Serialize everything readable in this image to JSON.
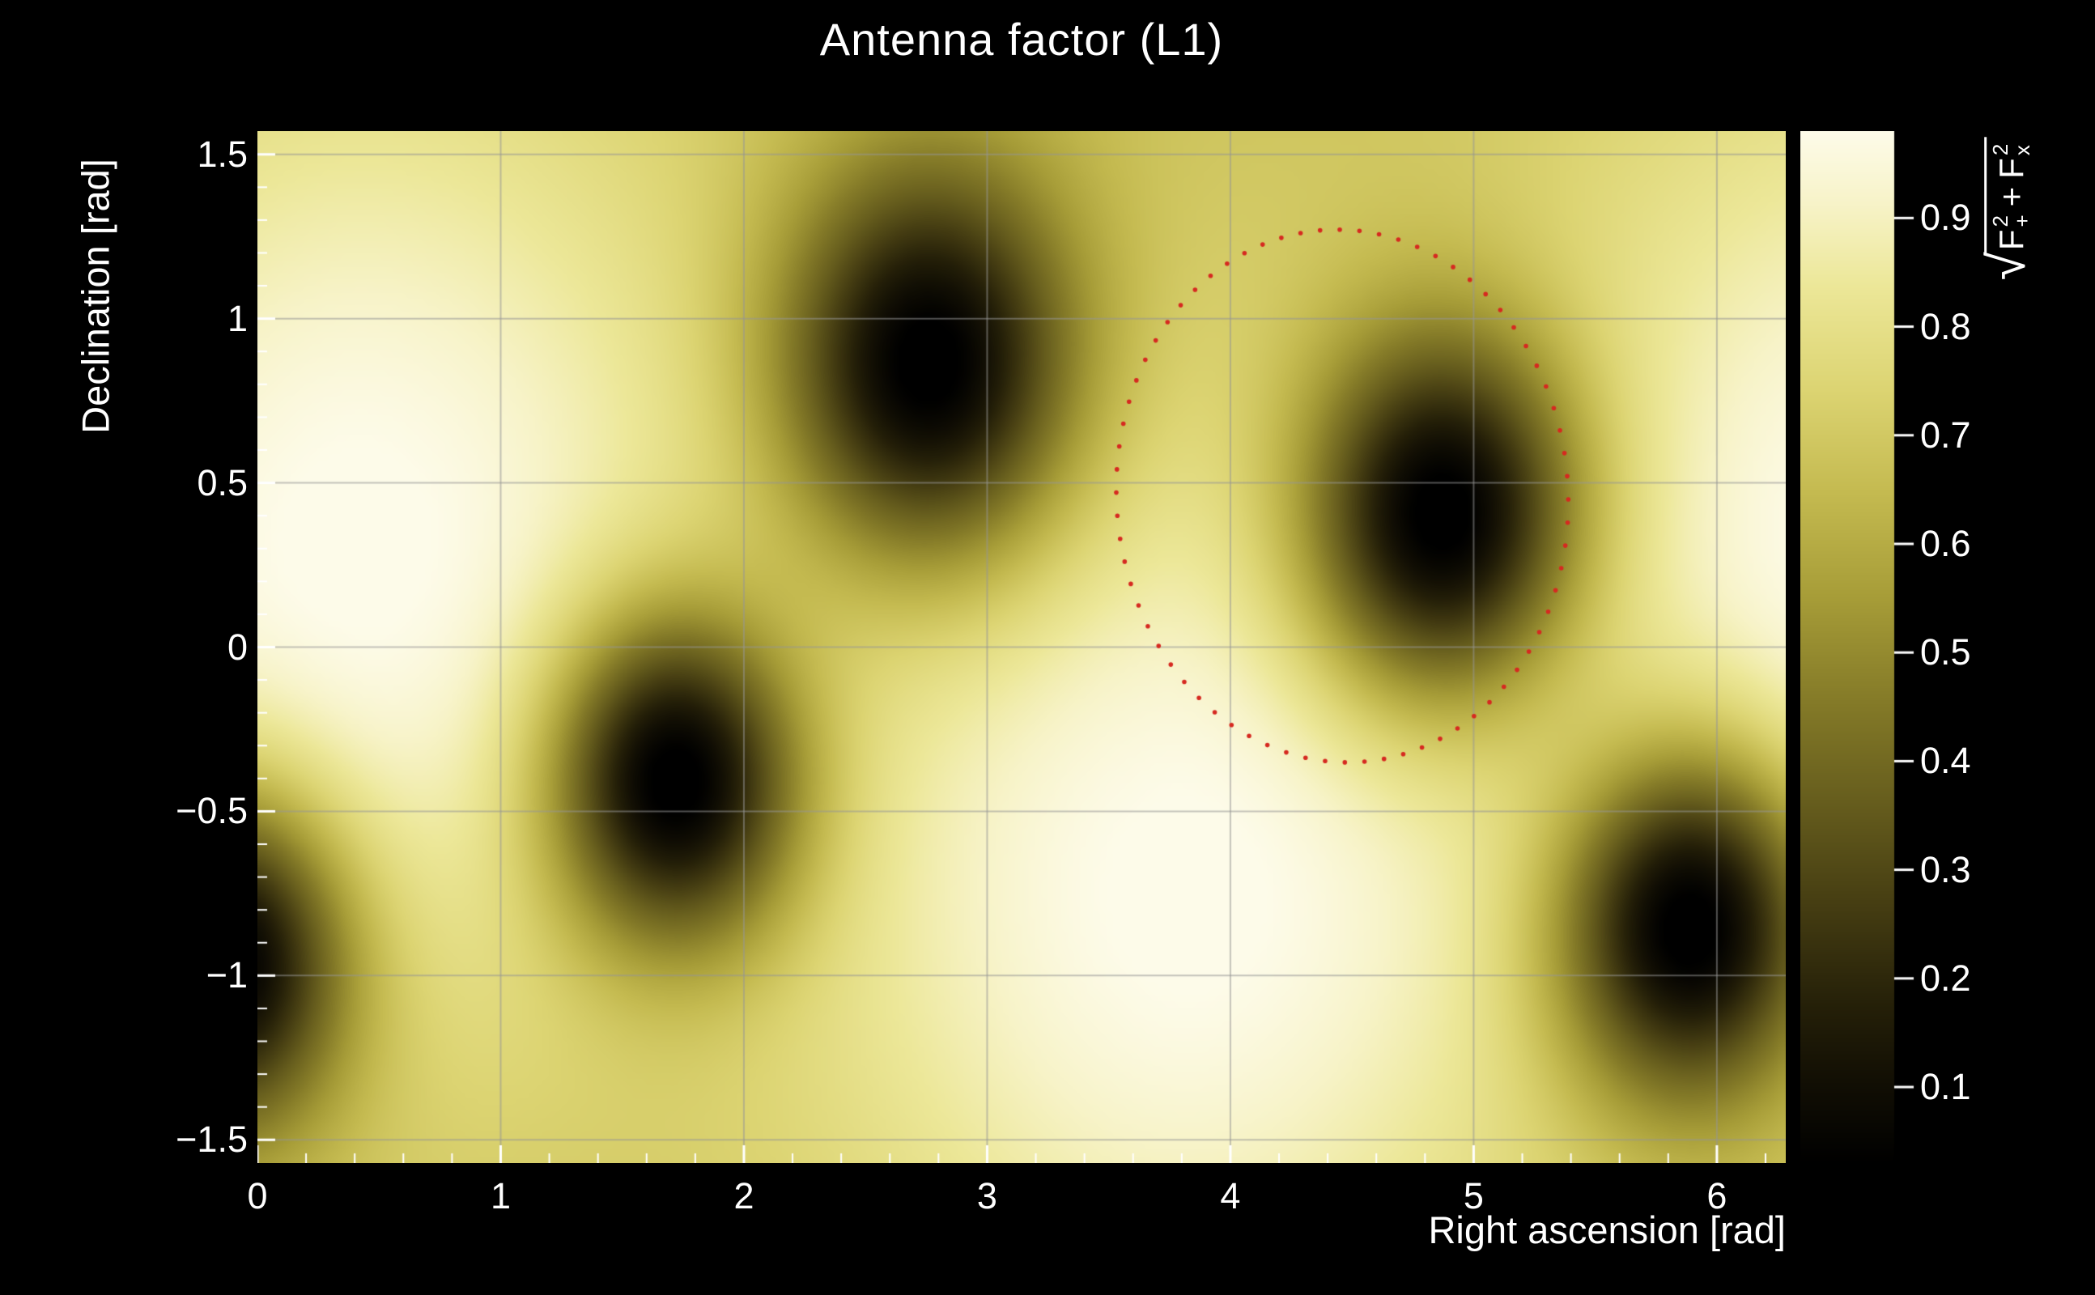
{
  "figure": {
    "background_color": "#000000",
    "text_color": "#ffffff"
  },
  "chart_data": {
    "type": "heatmap",
    "title": "Antenna factor (L1)",
    "xlabel": "Right ascension [rad]",
    "ylabel": "Declination [rad]",
    "xlim": [
      0,
      6.2832
    ],
    "ylim": [
      -1.5708,
      1.5708
    ],
    "x_ticks": [
      0,
      1,
      2,
      3,
      4,
      5,
      6
    ],
    "x_tick_labels": [
      "0",
      "1",
      "2",
      "3",
      "4",
      "5",
      "6"
    ],
    "x_minor_step": 0.2,
    "y_ticks": [
      1.5,
      1,
      0.5,
      0,
      -0.5,
      -1,
      -1.5
    ],
    "y_tick_labels": [
      "1.5",
      "1",
      "0.5",
      "0",
      "−0.5",
      "−1",
      "−1.5"
    ],
    "y_minor_step": 0.1,
    "grid": true,
    "grid_color": "rgba(150,150,150,0.55)",
    "tick_color": "#ffffff",
    "colorbar": {
      "range": [
        0.03,
        0.98
      ],
      "ticks": [
        0.9,
        0.8,
        0.7,
        0.6,
        0.5,
        0.4,
        0.3,
        0.2,
        0.1
      ],
      "tick_labels": [
        "0.9",
        "0.8",
        "0.7",
        "0.6",
        "0.5",
        "0.4",
        "0.3",
        "0.2",
        "0.1"
      ],
      "label": "sqrt(F+^2 + Fx^2)",
      "label_parts": {
        "radical": "√",
        "term1_base": "F",
        "term1_sup": "2",
        "term1_sub": "+",
        "operator": "+",
        "term2_base": "F",
        "term2_sup": "2",
        "term2_sub": "x"
      }
    },
    "colormap_stops": [
      [
        0.0,
        "#000000"
      ],
      [
        0.08,
        "#120f04"
      ],
      [
        0.15,
        "#241f08"
      ],
      [
        0.25,
        "#453d12"
      ],
      [
        0.35,
        "#665d1d"
      ],
      [
        0.45,
        "#857b28"
      ],
      [
        0.55,
        "#a79d38"
      ],
      [
        0.65,
        "#c4ba50"
      ],
      [
        0.75,
        "#dcd472"
      ],
      [
        0.85,
        "#ece798"
      ],
      [
        0.93,
        "#f7f3c8"
      ],
      [
        1.0,
        "#fdfbe9"
      ]
    ],
    "field": {
      "base_level": 0.66,
      "maxima": [
        {
          "x": 0.45,
          "y": 0.3,
          "amp": 0.33,
          "sigma": 1.05
        },
        {
          "x": 3.8,
          "y": -0.75,
          "amp": 0.33,
          "sigma": 1.05
        }
      ],
      "nulls": [
        {
          "x": 2.76,
          "y": 0.87,
          "sigma": 0.42
        },
        {
          "x": 4.87,
          "y": 0.41,
          "sigma": 0.4
        },
        {
          "x": 1.72,
          "y": -0.41,
          "sigma": 0.36
        },
        {
          "x": 5.89,
          "y": -0.86,
          "sigma": 0.38
        },
        {
          "x": -0.15,
          "y": -0.97,
          "sigma": 0.37
        }
      ]
    },
    "overlay": {
      "type": "dotted-ellipse",
      "color": "#d62920",
      "center": [
        4.46,
        0.46
      ],
      "rx": 0.93,
      "ry": 0.81,
      "rotation_deg": -5,
      "n_dots": 72,
      "dot_radius_px": 2.8
    }
  }
}
